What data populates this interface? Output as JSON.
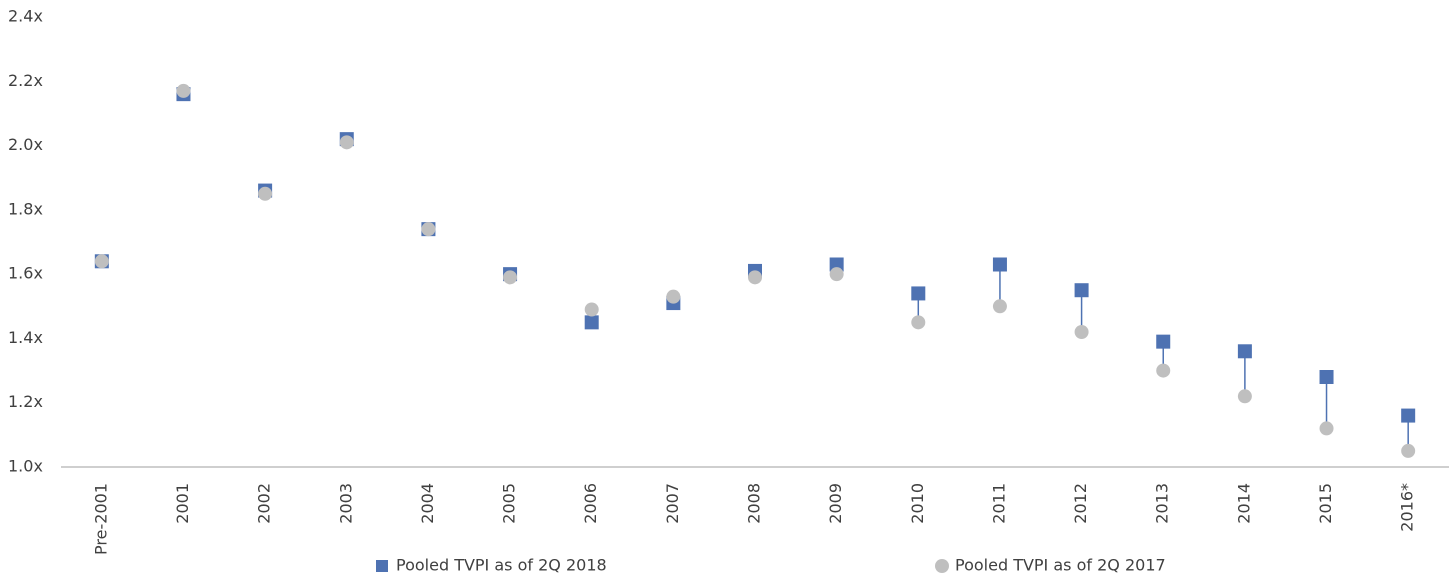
{
  "chart_data": {
    "type": "dot",
    "categories": [
      "Pre-2001",
      "2001",
      "2002",
      "2003",
      "2004",
      "2005",
      "2006",
      "2007",
      "2008",
      "2009",
      "2010",
      "2011",
      "2012",
      "2013",
      "2014",
      "2015",
      "2016*"
    ],
    "series": [
      {
        "name": "Pooled TVPI as of 2Q 2018",
        "color": "#4e72b2",
        "marker": "square",
        "values": [
          1.64,
          2.16,
          1.86,
          2.02,
          1.74,
          1.6,
          1.45,
          1.51,
          1.61,
          1.63,
          1.54,
          1.63,
          1.55,
          1.39,
          1.36,
          1.28,
          1.16
        ]
      },
      {
        "name": "Pooled TVPI as of 2Q 2017",
        "color": "#bfbfbf",
        "marker": "circle",
        "values": [
          1.64,
          2.17,
          1.85,
          2.01,
          1.74,
          1.59,
          1.49,
          1.53,
          1.59,
          1.6,
          1.45,
          1.5,
          1.42,
          1.3,
          1.22,
          1.12,
          1.05
        ]
      }
    ],
    "connector_color": "#4e72b2",
    "ylim": [
      1.0,
      2.4
    ],
    "yticks": [
      {
        "value": 1.0,
        "label": "1.0x"
      },
      {
        "value": 1.2,
        "label": "1.2x"
      },
      {
        "value": 1.4,
        "label": "1.4x"
      },
      {
        "value": 1.6,
        "label": "1.6x"
      },
      {
        "value": 1.8,
        "label": "1.8x"
      },
      {
        "value": 2.0,
        "label": "2.0x"
      },
      {
        "value": 2.2,
        "label": "2.2x"
      },
      {
        "value": 2.4,
        "label": "2.4x"
      }
    ],
    "grid": false,
    "legend": "bottom"
  }
}
